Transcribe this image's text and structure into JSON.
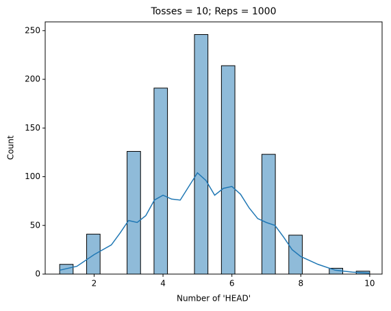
{
  "chart_data": {
    "type": "histogram",
    "title": "Tosses = 10; Reps = 1000",
    "x_label": "Number of 'HEAD'",
    "y_label": "Count",
    "bins": [
      1,
      1.391,
      1.783,
      2.174,
      2.565,
      2.957,
      3.348,
      3.739,
      4.13,
      4.522,
      4.913,
      5.304,
      5.696,
      6.087,
      6.478,
      6.87,
      7.261,
      7.652,
      8.043,
      8.435,
      8.826,
      9.217,
      9.609,
      10
    ],
    "counts": [
      10,
      0,
      41,
      0,
      0,
      126,
      0,
      191,
      0,
      0,
      246,
      0,
      214,
      0,
      0,
      123,
      0,
      40,
      0,
      0,
      6,
      0,
      3
    ],
    "color": "#8fbbd9",
    "kde": {
      "color": "#1f77b4",
      "x": [
        1,
        1.5,
        2,
        2.5,
        2.75,
        3,
        3.25,
        3.5,
        3.75,
        4,
        4.25,
        4.5,
        4.75,
        5,
        5.25,
        5.5,
        5.75,
        6,
        6.25,
        6.5,
        6.75,
        7,
        7.25,
        7.5,
        7.75,
        8,
        8.5,
        9,
        9.5,
        10
      ],
      "values": [
        4,
        8,
        20,
        30,
        42,
        55,
        53,
        60,
        76,
        81,
        77,
        76,
        90,
        104,
        96,
        81,
        88,
        90,
        82,
        68,
        57,
        53,
        50,
        38,
        25,
        18,
        10,
        4,
        2,
        1
      ]
    },
    "xlim": [
      0.58,
      10.36
    ],
    "ylim": [
      0,
      259
    ],
    "xticks": [
      2,
      4,
      6,
      8,
      10
    ],
    "yticks": [
      0,
      50,
      100,
      150,
      200,
      250
    ]
  }
}
